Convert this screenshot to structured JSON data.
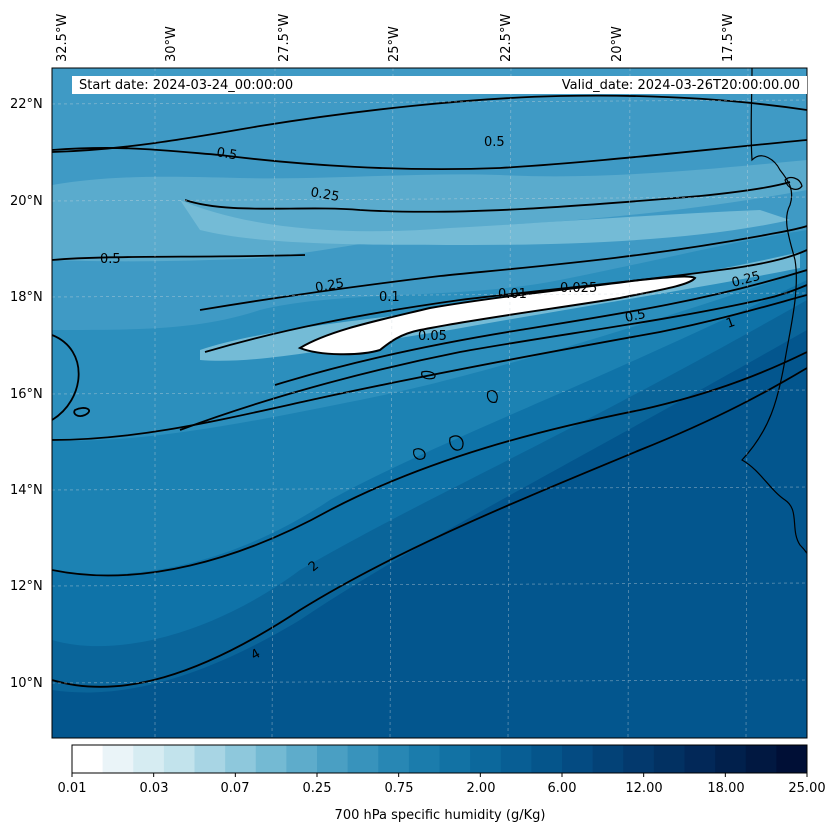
{
  "header": {
    "start_date": "Start date: 2024-03-24_00:00:00",
    "valid_date": "Valid_date: 2024-03-26T20:00:00.00"
  },
  "lon_labels": [
    "32.5°W",
    "30°W",
    "27.5°W",
    "25°W",
    "22.5°W",
    "20°W",
    "17.5°W"
  ],
  "lat_labels": [
    "22°N",
    "20°N",
    "18°N",
    "16°N",
    "14°N",
    "12°N",
    "10°N"
  ],
  "contour_labels": [
    "0.5",
    "0.5",
    "0.25",
    "0.5",
    "0.25",
    "0.1",
    "0.01",
    "0.025",
    "0.05",
    "0.25",
    "0.5",
    "1",
    "2",
    "4"
  ],
  "colorbar": {
    "title": "700 hPa specific humidity (g/Kg)",
    "ticks": [
      "0.01",
      "0.03",
      "0.07",
      "0.25",
      "0.75",
      "2.00",
      "6.00",
      "12.00",
      "18.00",
      "25.00"
    ],
    "colors": [
      "#ffffff",
      "#eaf4f8",
      "#d6ecf2",
      "#c2e3ec",
      "#a8d5e4",
      "#8ec8dc",
      "#74bad3",
      "#5eaccb",
      "#4a9fc3",
      "#3893bc",
      "#2887b4",
      "#1b7cac",
      "#1272a4",
      "#0c689c",
      "#085e94",
      "#05558b",
      "#044b82",
      "#034277",
      "#03396d",
      "#023162",
      "#022858",
      "#01204c",
      "#011841",
      "#000f36"
    ]
  },
  "colors": {
    "ocean_dark": "#03568e",
    "ocean_mid": "#1678ad",
    "ocean_light": "#5aa9cc",
    "dry_core": "#ffffff"
  }
}
